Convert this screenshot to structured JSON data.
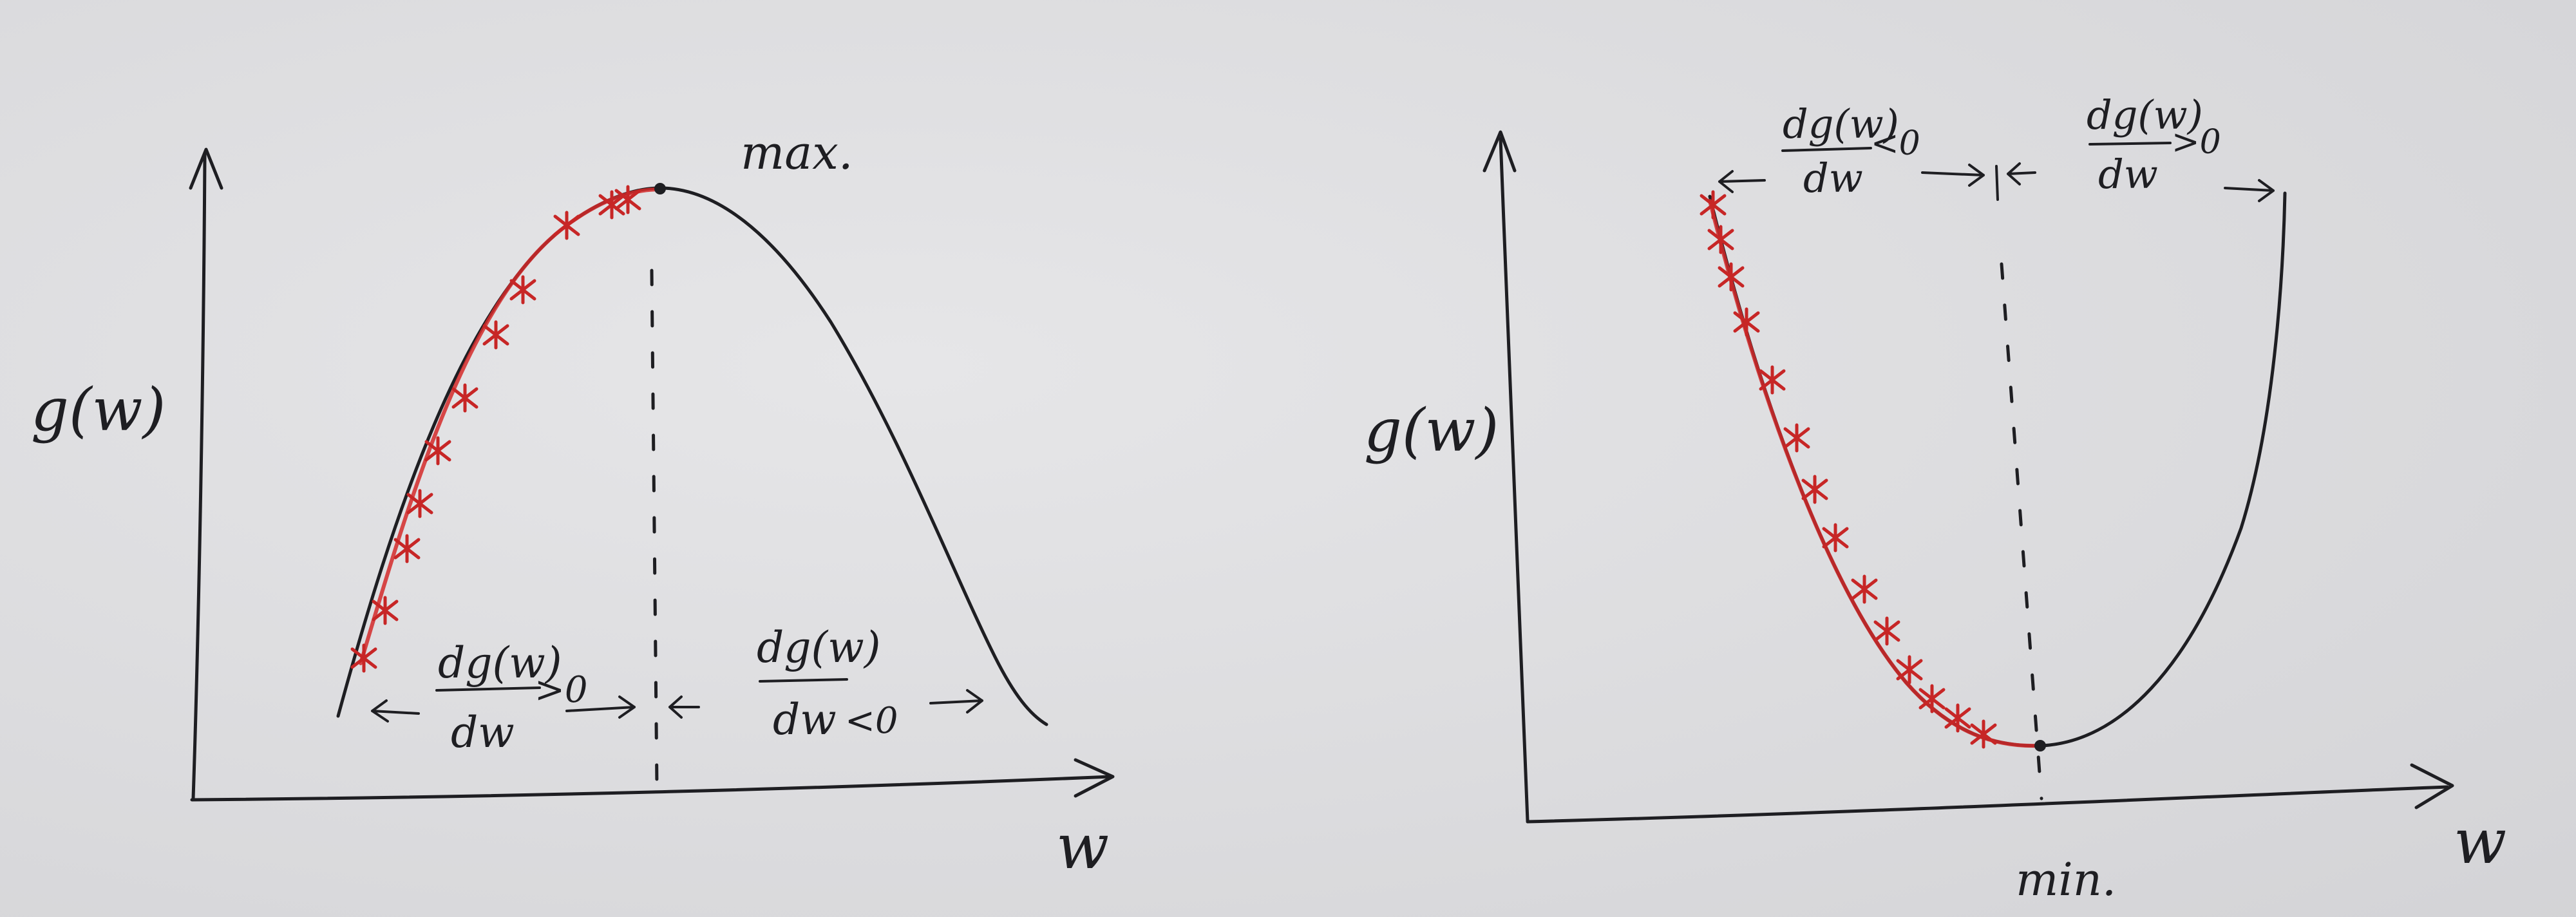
{
  "left_panel": {
    "ylabel": "g(w)",
    "xlabel": "w",
    "extremum_label": "max.",
    "left_region": {
      "numerator": "dg(w)",
      "denominator": "dw",
      "relation": ">0"
    },
    "right_region": {
      "numerator": "dg(w)",
      "denominator": "dw",
      "relation": "<0"
    }
  },
  "right_panel": {
    "ylabel": "g(w)",
    "xlabel": "w",
    "extremum_label": "min.",
    "left_region": {
      "numerator": "dg(w)",
      "denominator": "dw",
      "relation": "<0"
    },
    "right_region": {
      "numerator": "dg(w)",
      "denominator": "dw",
      "relation": ">0"
    }
  },
  "colors": {
    "ink": "#1e1e22",
    "path_red": "#d42a2a",
    "paper": "#dedee0"
  }
}
